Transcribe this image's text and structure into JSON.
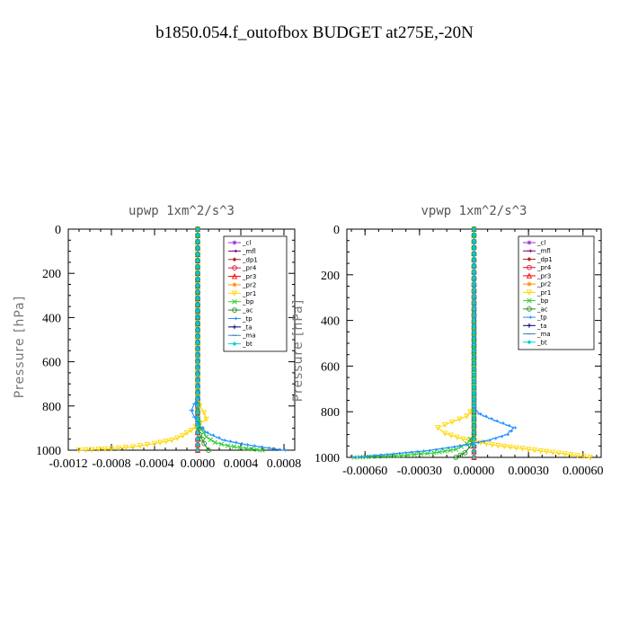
{
  "figure_title": "b1850.054.f_outofbox  BUDGET at275E,-20N",
  "chart_data": [
    {
      "type": "line",
      "title": "upwp  1xm^2/s^3",
      "ylabel": "Pressure [hPa]",
      "xlim": [
        -0.0012,
        0.0009
      ],
      "ylim": [
        1000,
        0
      ],
      "xticks": [
        -0.0012,
        -0.0008,
        -0.0004,
        0.0,
        0.0004,
        0.0008
      ],
      "xtick_labels": [
        "-0.0012",
        "-0.0008",
        "-0.0004",
        "0.0000",
        "0.0004",
        "0.0008"
      ],
      "yticks": [
        0,
        200,
        400,
        600,
        800,
        1000
      ],
      "ytick_labels": [
        "0",
        "200",
        "400",
        "600",
        "800",
        "1000"
      ],
      "legend_location": "top-right",
      "series": [
        {
          "name": "_cl",
          "color": "#9932cc",
          "marker": "star",
          "points": [
            [
              0,
              0
            ],
            [
              0,
              400
            ],
            [
              0,
              800
            ],
            [
              0,
              950
            ],
            [
              0,
              1000
            ]
          ]
        },
        {
          "name": "_mfl",
          "color": "#800080",
          "marker": "arrow",
          "points": [
            [
              0,
              0
            ],
            [
              0,
              400
            ],
            [
              0,
              800
            ],
            [
              0,
              950
            ],
            [
              0,
              1000
            ]
          ]
        },
        {
          "name": "_dp1",
          "color": "#b22222",
          "marker": "diamond",
          "points": [
            [
              0,
              0
            ],
            [
              0,
              400
            ],
            [
              0,
              800
            ],
            [
              0,
              950
            ],
            [
              0,
              1000
            ]
          ]
        },
        {
          "name": "_pr4",
          "color": "#dc143c",
          "marker": "circle",
          "points": [
            [
              0,
              0
            ],
            [
              0,
              400
            ],
            [
              0,
              800
            ],
            [
              0,
              950
            ],
            [
              0,
              1000
            ]
          ]
        },
        {
          "name": "_pr3",
          "color": "#ff0000",
          "marker": "triangle",
          "points": [
            [
              0,
              0
            ],
            [
              0,
              400
            ],
            [
              0,
              800
            ],
            [
              0,
              950
            ],
            [
              0,
              1000
            ]
          ]
        },
        {
          "name": "_pr2",
          "color": "#ff8c00",
          "marker": "star",
          "points": [
            [
              0,
              0
            ],
            [
              0,
              400
            ],
            [
              0,
              800
            ],
            [
              0,
              950
            ],
            [
              0,
              1000
            ]
          ]
        },
        {
          "name": "_pr1",
          "color": "#ffd700",
          "marker": "tri-down",
          "points": [
            [
              0,
              0
            ],
            [
              0,
              760
            ],
            [
              2e-05,
              800
            ],
            [
              6e-05,
              830
            ],
            [
              8e-05,
              860
            ],
            [
              2e-05,
              880
            ],
            [
              -6e-05,
              910
            ],
            [
              -0.00014,
              935
            ],
            [
              -0.00024,
              955
            ],
            [
              -0.0004,
              970
            ],
            [
              -0.0006,
              985
            ],
            [
              -0.0008,
              993
            ],
            [
              -0.0011,
              1000
            ]
          ]
        },
        {
          "name": "_bp",
          "color": "#32cd32",
          "marker": "cross",
          "points": [
            [
              0,
              0
            ],
            [
              0,
              850
            ],
            [
              3e-05,
              900
            ],
            [
              8e-05,
              940
            ],
            [
              0.00016,
              965
            ],
            [
              0.00028,
              980
            ],
            [
              0.00045,
              992
            ],
            [
              0.0006,
              1000
            ]
          ]
        },
        {
          "name": "_ac",
          "color": "#228b22",
          "marker": "circle",
          "points": [
            [
              0,
              0
            ],
            [
              0,
              880
            ],
            [
              2e-05,
              930
            ],
            [
              6e-05,
              970
            ],
            [
              0.0001,
              1000
            ]
          ]
        },
        {
          "name": "_tp",
          "color": "#1e90ff",
          "marker": "arrow",
          "points": [
            [
              0,
              0
            ],
            [
              0,
              760
            ],
            [
              -3e-05,
              790
            ],
            [
              -6e-05,
              820
            ],
            [
              -3e-05,
              850
            ],
            [
              0,
              880
            ],
            [
              8e-05,
              920
            ],
            [
              0.00024,
              955
            ],
            [
              0.00045,
              975
            ],
            [
              0.00065,
              990
            ],
            [
              0.0008,
              1000
            ]
          ]
        },
        {
          "name": "_ta",
          "color": "#000080",
          "marker": "plus",
          "points": [
            [
              0,
              0
            ],
            [
              0,
              400
            ],
            [
              0,
              800
            ],
            [
              0,
              950
            ],
            [
              0,
              1000
            ]
          ]
        },
        {
          "name": "_ma",
          "color": "#4682b4",
          "marker": "dash",
          "points": [
            [
              0,
              0
            ],
            [
              0,
              400
            ],
            [
              0,
              800
            ],
            [
              0,
              950
            ],
            [
              0,
              1000
            ]
          ]
        },
        {
          "name": "_bt",
          "color": "#00ced1",
          "marker": "diamond",
          "points": [
            [
              0,
              0
            ],
            [
              0,
              400
            ],
            [
              0,
              800
            ],
            [
              0,
              950
            ],
            [
              0,
              1000
            ]
          ]
        }
      ]
    },
    {
      "type": "line",
      "title": "vpwp  1xm^2/s^3",
      "ylabel": "Pressure [hPa]",
      "xlim": [
        -0.0007,
        0.0007
      ],
      "ylim": [
        1000,
        0
      ],
      "xticks": [
        -0.0006,
        -0.0003,
        0.0,
        0.0003,
        0.0006
      ],
      "xtick_labels": [
        "-0.00060",
        "-0.00030",
        "0.00000",
        "0.00030",
        "0.00060"
      ],
      "yticks": [
        0,
        200,
        400,
        600,
        800,
        1000
      ],
      "ytick_labels": [
        "0",
        "200",
        "400",
        "600",
        "800",
        "1000"
      ],
      "legend_location": "top-right",
      "series": [
        {
          "name": "_cl",
          "color": "#9932cc",
          "marker": "star",
          "points": [
            [
              0,
              0
            ],
            [
              0,
              400
            ],
            [
              0,
              800
            ],
            [
              0,
              950
            ],
            [
              0,
              1000
            ]
          ]
        },
        {
          "name": "_mfl",
          "color": "#800080",
          "marker": "arrow",
          "points": [
            [
              0,
              0
            ],
            [
              0,
              400
            ],
            [
              0,
              800
            ],
            [
              0,
              950
            ],
            [
              0,
              1000
            ]
          ]
        },
        {
          "name": "_dp1",
          "color": "#b22222",
          "marker": "diamond",
          "points": [
            [
              0,
              0
            ],
            [
              0,
              400
            ],
            [
              0,
              800
            ],
            [
              0,
              950
            ],
            [
              0,
              1000
            ]
          ]
        },
        {
          "name": "_pr4",
          "color": "#dc143c",
          "marker": "circle",
          "points": [
            [
              0,
              0
            ],
            [
              0,
              400
            ],
            [
              0,
              800
            ],
            [
              0,
              950
            ],
            [
              0,
              1000
            ]
          ]
        },
        {
          "name": "_pr3",
          "color": "#ff0000",
          "marker": "triangle",
          "points": [
            [
              0,
              0
            ],
            [
              0,
              400
            ],
            [
              0,
              800
            ],
            [
              0,
              950
            ],
            [
              0,
              1000
            ]
          ]
        },
        {
          "name": "_pr2",
          "color": "#ff8c00",
          "marker": "star",
          "points": [
            [
              0,
              0
            ],
            [
              0,
              400
            ],
            [
              0,
              800
            ],
            [
              0,
              950
            ],
            [
              0,
              1000
            ]
          ]
        },
        {
          "name": "_pr1",
          "color": "#ffd700",
          "marker": "tri-down",
          "points": [
            [
              0,
              0
            ],
            [
              0,
              780
            ],
            [
              -4e-05,
              820
            ],
            [
              -0.00012,
              845
            ],
            [
              -0.0002,
              870
            ],
            [
              -0.00016,
              895
            ],
            [
              -6e-05,
              920
            ],
            [
              0.0001,
              945
            ],
            [
              0.0003,
              965
            ],
            [
              0.0005,
              985
            ],
            [
              0.00064,
              1000
            ]
          ]
        },
        {
          "name": "_bp",
          "color": "#32cd32",
          "marker": "cross",
          "points": [
            [
              0,
              0
            ],
            [
              0,
              900
            ],
            [
              -4e-05,
              940
            ],
            [
              -0.0001,
              965
            ],
            [
              -0.00022,
              980
            ],
            [
              -0.0004,
              992
            ],
            [
              -0.00066,
              1000
            ]
          ]
        },
        {
          "name": "_ac",
          "color": "#228b22",
          "marker": "circle",
          "points": [
            [
              0,
              0
            ],
            [
              0,
              900
            ],
            [
              -2e-05,
              950
            ],
            [
              -5e-05,
              980
            ],
            [
              -0.0001,
              1000
            ]
          ]
        },
        {
          "name": "_tp",
          "color": "#1e90ff",
          "marker": "arrow",
          "points": [
            [
              0,
              0
            ],
            [
              0,
              780
            ],
            [
              3e-05,
              810
            ],
            [
              0.00012,
              840
            ],
            [
              0.00022,
              870
            ],
            [
              0.00018,
              900
            ],
            [
              8e-05,
              925
            ],
            [
              -8e-05,
              950
            ],
            [
              -0.00025,
              970
            ],
            [
              -0.00045,
              985
            ],
            [
              -0.00066,
              1000
            ]
          ]
        },
        {
          "name": "_ta",
          "color": "#000080",
          "marker": "plus",
          "points": [
            [
              0,
              0
            ],
            [
              0,
              400
            ],
            [
              0,
              800
            ],
            [
              0,
              950
            ],
            [
              0,
              1000
            ]
          ]
        },
        {
          "name": "_ma",
          "color": "#4682b4",
          "marker": "dash",
          "points": [
            [
              0,
              0
            ],
            [
              0,
              400
            ],
            [
              0,
              800
            ],
            [
              0,
              950
            ],
            [
              0,
              1000
            ]
          ]
        },
        {
          "name": "_bt",
          "color": "#00ced1",
          "marker": "diamond",
          "points": [
            [
              0,
              0
            ],
            [
              0,
              400
            ],
            [
              0,
              800
            ],
            [
              0,
              950
            ],
            [
              0,
              1000
            ]
          ]
        }
      ]
    }
  ]
}
